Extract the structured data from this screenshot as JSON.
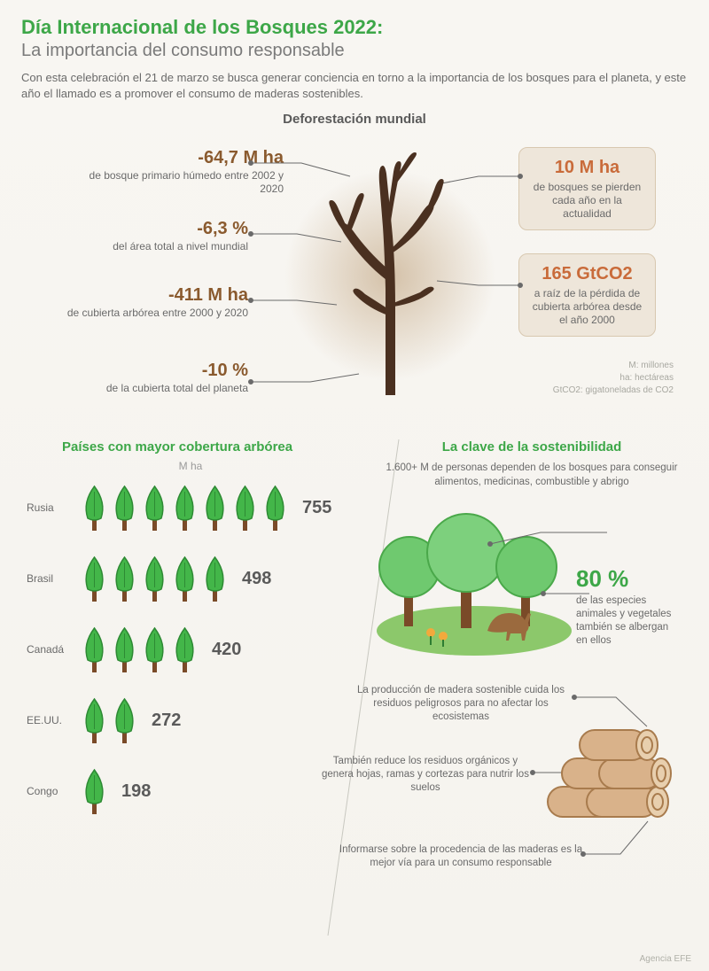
{
  "colors": {
    "green_accent": "#3da748",
    "green_dark": "#2e7d32",
    "green_light": "#6fc96f",
    "brown_stat": "#8a5a2e",
    "orange_box": "#c96b3a",
    "box_bg": "#eee6da",
    "box_border": "#d8c8b0",
    "text_gray": "#6a6a6a",
    "text_light": "#9a9a9a",
    "bg_top": "#f8f6f2",
    "log_fill": "#d9b28a",
    "log_stroke": "#a87b4d",
    "deer": "#9b6a3e",
    "ground": "#8cc86b",
    "flower": "#f2a93c"
  },
  "typography": {
    "title_fontsize": 22,
    "subtitle_fontsize": 20,
    "body_fontsize": 13,
    "stat_big_fontsize": 20,
    "section_heading_fontsize": 15,
    "small_fontsize": 11.5,
    "legend_fontsize": 10
  },
  "header": {
    "title": "Día Internacional de los Bosques 2022:",
    "subtitle": "La importancia del consumo responsable",
    "intro": "Con esta celebración el 21 de marzo se busca generar conciencia en torno a la importancia de los bosques para el planeta, y este año el llamado es a promover el consumo de maderas sostenibles."
  },
  "deforestation": {
    "heading": "Deforestación mundial",
    "left_stats": [
      {
        "value": "-64,7 M ha",
        "desc": "de bosque primario húmedo entre 2002 y 2020"
      },
      {
        "value": "-6,3 %",
        "desc": "del área total a nivel mundial"
      },
      {
        "value": "-411 M ha",
        "desc": "de cubierta arbórea entre 2000 y 2020"
      },
      {
        "value": "-10 %",
        "desc": "de la cubierta total del planeta"
      }
    ],
    "right_boxes": [
      {
        "value": "10 M ha",
        "desc": "de bosques se pierden cada año en la actualidad"
      },
      {
        "value": "165 GtCO2",
        "desc": "a raíz de la pérdida de cubierta arbórea desde el año 2000"
      }
    ],
    "legend": [
      "M: millones",
      "ha: hectáreas",
      "GtCO2: gigatoneladas de CO2"
    ]
  },
  "coverage": {
    "heading": "Países con mayor cobertura arbórea",
    "unit": "M ha",
    "max_value": 800,
    "tree_unit_approx": 110,
    "rows": [
      {
        "country": "Rusia",
        "value": 755,
        "trees": 7
      },
      {
        "country": "Brasil",
        "value": 498,
        "trees": 5
      },
      {
        "country": "Canadá",
        "value": 420,
        "trees": 4
      },
      {
        "country": "EE.UU.",
        "value": 272,
        "trees": 2
      },
      {
        "country": "Congo",
        "value": 198,
        "trees": 1
      }
    ]
  },
  "sustainability": {
    "heading": "La clave de la sostenibilidad",
    "top_text": "1.600+ M de personas dependen de los bosques para conseguir alimentos, medicinas, combustible y abrigo",
    "stat_80": {
      "value": "80 %",
      "desc": "de las especies animales y vegetales también se albergan en ellos"
    },
    "log_texts": [
      "La producción de madera sostenible cuida los residuos peligrosos para no afectar los ecosistemas",
      "También reduce los residuos orgánicos y genera hojas, ramas y cortezas para nutrir los suelos",
      "Informarse sobre la procedencia de las maderas es la mejor vía para un consumo responsable"
    ]
  },
  "credit": "Agencia EFE"
}
